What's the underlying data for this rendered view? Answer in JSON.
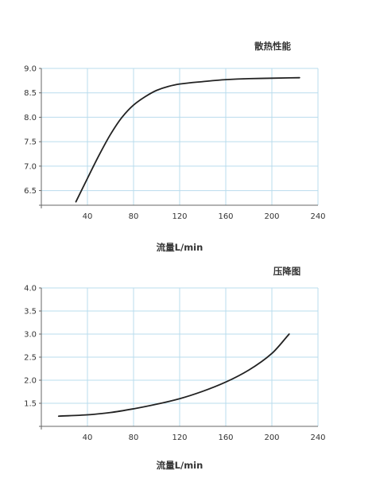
{
  "chart_data": [
    {
      "type": "line",
      "title": "散热性能",
      "xlabel": "流量L/min",
      "ylabel": "",
      "xlim": [
        0,
        240
      ],
      "ylim": [
        6.2,
        9.0
      ],
      "xticks": [
        40,
        80,
        120,
        160,
        200,
        240
      ],
      "yticks": [
        "6.5",
        "7.0",
        "7.5",
        "8.0",
        "8.5",
        "9.0"
      ],
      "grid": true,
      "colors": {
        "line": "#222222",
        "grid": "#b9dced",
        "axis": "#666666"
      },
      "series": [
        {
          "x": [
            30,
            40,
            50,
            60,
            70,
            80,
            90,
            100,
            110,
            120,
            140,
            160,
            180,
            200,
            224
          ],
          "y": [
            6.27,
            6.75,
            7.22,
            7.65,
            8.0,
            8.25,
            8.42,
            8.55,
            8.63,
            8.68,
            8.73,
            8.77,
            8.79,
            8.8,
            8.81
          ]
        }
      ]
    },
    {
      "type": "line",
      "title": "压降图",
      "xlabel": "流量L/min",
      "ylabel": "",
      "xlim": [
        0,
        240
      ],
      "ylim": [
        1.0,
        4.0
      ],
      "xticks": [
        40,
        80,
        120,
        160,
        200,
        240
      ],
      "yticks": [
        "1.5",
        "2.0",
        "2.5",
        "3.0",
        "3.5",
        "4.0"
      ],
      "grid": true,
      "colors": {
        "line": "#222222",
        "grid": "#b9dced",
        "axis": "#666666"
      },
      "series": [
        {
          "x": [
            15,
            40,
            60,
            80,
            100,
            120,
            140,
            160,
            180,
            200,
            215
          ],
          "y": [
            1.22,
            1.25,
            1.3,
            1.38,
            1.48,
            1.6,
            1.76,
            1.96,
            2.22,
            2.58,
            3.0
          ]
        }
      ]
    }
  ]
}
